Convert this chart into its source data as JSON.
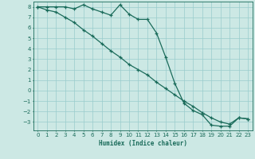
{
  "xlabel": "Humidex (Indice chaleur)",
  "background_color": "#cce8e4",
  "grid_color": "#99cccc",
  "line_color": "#1a6b5a",
  "xlim": [
    -0.5,
    23.5
  ],
  "ylim": [
    -3.8,
    8.5
  ],
  "yticks": [
    8,
    7,
    6,
    5,
    4,
    3,
    2,
    1,
    0,
    -1,
    -2,
    -3
  ],
  "xticks": [
    0,
    1,
    2,
    3,
    4,
    5,
    6,
    7,
    8,
    9,
    10,
    11,
    12,
    13,
    14,
    15,
    16,
    17,
    18,
    19,
    20,
    21,
    22,
    23
  ],
  "line1_x": [
    0,
    1,
    2,
    3,
    4,
    5,
    6,
    7,
    8,
    9,
    10,
    11,
    12,
    13,
    14,
    15,
    16,
    17,
    18,
    19,
    20,
    21,
    22,
    23
  ],
  "line1_y": [
    8.0,
    8.0,
    8.0,
    8.0,
    7.8,
    8.2,
    7.8,
    7.5,
    7.2,
    8.2,
    7.3,
    6.8,
    6.8,
    5.5,
    3.2,
    0.7,
    -1.2,
    -1.9,
    -2.3,
    -3.3,
    -3.4,
    -3.4,
    -2.6,
    -2.7
  ],
  "line2_x": [
    0,
    1,
    2,
    3,
    4,
    5,
    6,
    7,
    8,
    9,
    10,
    11,
    12,
    13,
    14,
    15,
    16,
    17,
    18,
    19,
    20,
    21,
    22,
    23
  ],
  "line2_y": [
    8.0,
    7.7,
    7.5,
    7.0,
    6.5,
    5.8,
    5.2,
    4.5,
    3.8,
    3.2,
    2.5,
    2.0,
    1.5,
    0.8,
    0.2,
    -0.4,
    -1.0,
    -1.5,
    -2.1,
    -2.6,
    -3.0,
    -3.2,
    -2.6,
    -2.7
  ]
}
